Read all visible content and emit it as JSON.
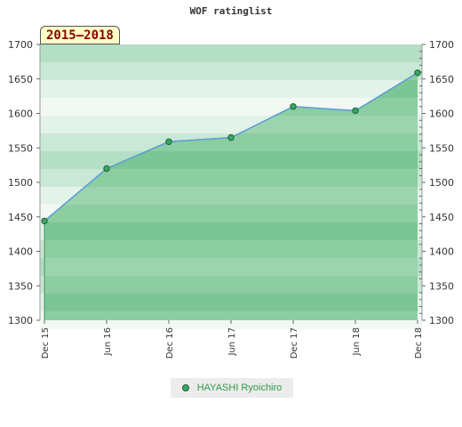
{
  "colors": {
    "line": "#5b9bd5",
    "marker": "#39a863",
    "marker_stroke": "#1f5f37",
    "fill_dark": "#7cc596",
    "fill_light": "#9bd4ae",
    "bg_dark": "#b4dfc4",
    "bg_light": "#e4f3ea"
  },
  "chart_data": {
    "type": "area",
    "title": "WOF ratinglist",
    "badge": "2015–2018",
    "categories": [
      "Dec 15",
      "Jun 16",
      "Dec 16",
      "Jun 17",
      "Dec 17",
      "Jun 18",
      "Dec 18"
    ],
    "series": [
      {
        "name": "HAYASHI Ryoichiro",
        "values": [
          1444,
          1520,
          1559,
          1565,
          1610,
          1604,
          1659
        ]
      }
    ],
    "ylim": [
      1300,
      1700
    ],
    "yticks": [
      1300,
      1350,
      1400,
      1450,
      1500,
      1550,
      1600,
      1650,
      1700
    ],
    "grid": false,
    "legend": "bottom"
  }
}
